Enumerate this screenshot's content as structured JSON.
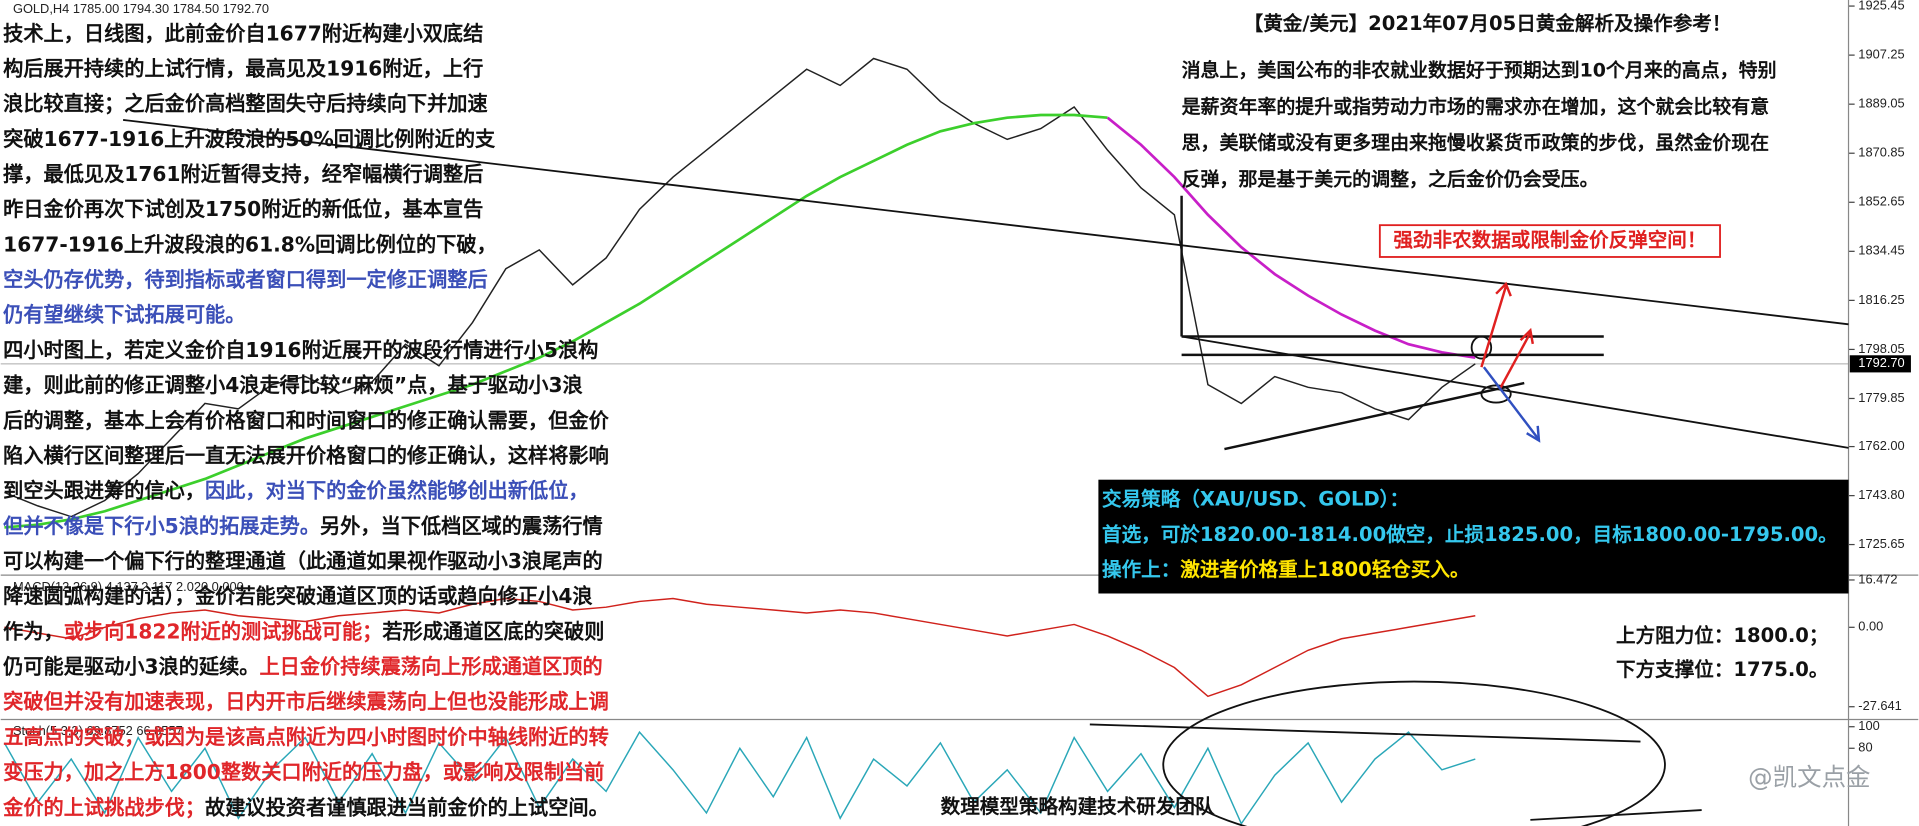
{
  "chart_data": [
    {
      "type": "line",
      "title": "GOLD,H4 1785.00 1794.30 1784.50 1792.70",
      "categories": [
        null,
        null,
        null,
        null,
        null,
        null,
        null,
        null,
        null,
        null,
        null,
        null,
        null,
        null,
        null,
        null,
        null,
        null,
        null,
        null,
        null,
        null,
        null,
        null,
        null,
        null,
        null,
        null,
        null,
        null,
        null,
        null,
        null,
        null,
        null,
        null,
        null,
        null,
        null,
        null,
        null,
        null,
        null,
        null,
        null
      ],
      "series": [
        {
          "color": "#222222",
          "values": [
            1745,
            1740,
            1736,
            1742,
            1752,
            1765,
            1778,
            1776,
            1785,
            1788,
            1782,
            1786,
            1800,
            1792,
            1808,
            1828,
            1835,
            1822,
            1832,
            1850,
            1862,
            1872,
            1882,
            1892,
            1902,
            1896,
            1906,
            1902,
            1890,
            1882,
            1876,
            1880,
            1888,
            1872,
            1858,
            1848,
            1785,
            1778,
            1788,
            1784,
            1782,
            1776,
            1772,
            1784,
            1792.7
          ]
        },
        {
          "color": "#3ccf2c",
          "values": [
            1732,
            1733,
            1735,
            1738,
            1742,
            1746,
            1750,
            1755,
            1760,
            1765,
            1769,
            1773,
            1777,
            1781,
            1785,
            1790,
            1795,
            1801,
            1808,
            1815,
            1823,
            1831,
            1839,
            1847,
            1855,
            1862,
            1868,
            1874,
            1879,
            1882,
            1884,
            1885,
            1885,
            1884,
            null,
            null,
            null,
            null,
            null,
            null,
            null,
            null,
            null,
            null,
            null
          ]
        },
        {
          "color": "#c81fc8",
          "values": [
            null,
            null,
            null,
            null,
            null,
            null,
            null,
            null,
            null,
            null,
            null,
            null,
            null,
            null,
            null,
            null,
            null,
            null,
            null,
            null,
            null,
            null,
            null,
            null,
            null,
            null,
            null,
            null,
            null,
            null,
            null,
            null,
            null,
            1884,
            1874,
            1862,
            1848,
            1836,
            1826,
            1818,
            1811,
            1805,
            1800,
            1797,
            1795
          ]
        }
      ],
      "ylim": [
        1714.3,
        1927.7
      ],
      "yticks": [
        1925.45,
        1907.25,
        1889.05,
        1870.85,
        1852.65,
        1834.45,
        1816.25,
        1798.05,
        1779.85,
        {
          "value": 1762,
          "label": "1762.00"
        },
        {
          "value": 1743.8,
          "label": "1743.80"
        },
        1725.65
      ],
      "current_price": {
        "value": 1792.7,
        "label": "1792.70"
      }
    },
    {
      "type": "line",
      "title": "MACD(12,26,9) 4.137 2.117 2.020 0.000",
      "categories": [
        null,
        null,
        null,
        null,
        null,
        null,
        null,
        null,
        null,
        null,
        null,
        null,
        null,
        null,
        null,
        null,
        null,
        null,
        null,
        null,
        null,
        null,
        null,
        null,
        null,
        null,
        null,
        null,
        null,
        null,
        null,
        null,
        null,
        null,
        null,
        null,
        null,
        null,
        null,
        null,
        null,
        null,
        null,
        null,
        null
      ],
      "series": [
        {
          "color": "#d0221c",
          "values": [
            0,
            -2,
            -4,
            0,
            3,
            5,
            6,
            4,
            3,
            2,
            4,
            5,
            6,
            5,
            8,
            10,
            9,
            6,
            7,
            9,
            10,
            8,
            7,
            6,
            5,
            6,
            5,
            3,
            1,
            -1,
            -3,
            -1,
            1,
            -3,
            -8,
            -14,
            -24,
            -20,
            -14,
            -8,
            -4,
            -2,
            0,
            2,
            4
          ]
        }
      ],
      "ylim": [
        -32.1,
        17.3
      ],
      "yticks": [
        16.472,
        {
          "value": 0,
          "label": "0.00"
        },
        -27.641
      ]
    },
    {
      "type": "line",
      "title": "Stoch(5,3,3) 69.8752 66.8557",
      "categories": [
        null,
        null,
        null,
        null,
        null,
        null,
        null,
        null,
        null,
        null,
        null,
        null,
        null,
        null,
        null,
        null,
        null,
        null,
        null,
        null,
        null,
        null,
        null,
        null,
        null,
        null,
        null,
        null,
        null,
        null,
        null,
        null,
        null,
        null,
        null,
        null,
        null,
        null,
        null,
        null,
        null,
        null,
        null,
        null,
        null
      ],
      "series": [
        {
          "color": "#2aa7b8",
          "values": [
            85,
            30,
            70,
            20,
            90,
            40,
            80,
            15,
            60,
            90,
            30,
            75,
            20,
            85,
            50,
            90,
            25,
            70,
            40,
            95,
            60,
            20,
            80,
            35,
            90,
            15,
            70,
            45,
            85,
            30,
            60,
            20,
            90,
            40,
            75,
            25,
            80,
            10,
            55,
            85,
            30,
            70,
            95,
            60,
            70
          ]
        }
      ],
      "ylim": [
        7.8,
        104.4
      ],
      "yticks": [
        100,
        80
      ]
    }
  ],
  "left_text": [
    [
      {
        "text": "技术上，日线图，此前金价自1677附近构建小双底结",
        "color": "#111111"
      }
    ],
    [
      {
        "text": "构后展开持续的上试行情，最高见及1916附近，上行",
        "color": "#111111"
      }
    ],
    [
      {
        "text": "浪比较直接；之后金价高档整固失守后持续向下并加速",
        "color": "#111111"
      }
    ],
    [
      {
        "text": "突破1677-1916上升波段浪的50%回调比例附近的支",
        "color": "#111111"
      }
    ],
    [
      {
        "text": "撑，最低见及1761附近暂得支持，经窄幅横行调整后",
        "color": "#111111"
      }
    ],
    [
      {
        "text": "昨日金价再次下试创及1750附近的新低位，基本宣告",
        "color": "#111111"
      }
    ],
    [
      {
        "text": "1677-1916上升波段浪的61.8%回调比例位的下破，",
        "color": "#111111"
      }
    ],
    [
      {
        "text": "空头仍存优势，待到指标或者窗口得到一定修正调整后",
        "color": "#3b4fb8"
      }
    ],
    [
      {
        "text": "仍有望继续下试拓展可能。",
        "color": "#3b4fb8"
      }
    ],
    [
      {
        "text": "四小时图上，若定义金价自1916附近展开的波段行情进行小5浪构",
        "color": "#111111"
      }
    ],
    [
      {
        "text": "建，则此前的修正调整小4浪走得比较“麻烦”点，基于驱动小3浪",
        "color": "#111111"
      }
    ],
    [
      {
        "text": "后的调整，基本上会有价格窗口和时间窗口的修正确认需要，但金价",
        "color": "#111111"
      }
    ],
    [
      {
        "text": "陷入横行区间整理后一直无法展开价格窗口的修正确认，这样将影响",
        "color": "#111111"
      }
    ],
    [
      {
        "text": "到空头跟进筹的信心，",
        "color": "#111111"
      },
      {
        "text": "因此，对当下的金价虽然能够创出新低位，",
        "color": "#3b4fb8"
      }
    ],
    [
      {
        "text": "但并不像是下行小5浪的拓展走势。",
        "color": "#3b4fb8"
      },
      {
        "text": "另外，当下低档区域的震荡行情",
        "color": "#111111"
      }
    ],
    [
      {
        "text": "可以构建一个偏下行的整理通道（此通道如果视作驱动小3浪尾声的",
        "color": "#111111"
      }
    ],
    [
      {
        "text": "降速圆弧构建的话），金价若能突破通道区顶的话或趋向修正小4浪",
        "color": "#111111"
      }
    ],
    [
      {
        "text": "作为，",
        "color": "#111111"
      },
      {
        "text": "或步向1822附近的测试挑战可能；",
        "color": "#e0262a"
      },
      {
        "text": "若形成通道区底的突破则",
        "color": "#111111"
      }
    ],
    [
      {
        "text": "仍可能是驱动小3浪的延续。",
        "color": "#111111"
      },
      {
        "text": "上日金价持续震荡向上形成通道区顶的",
        "color": "#e0262a"
      }
    ],
    [
      {
        "text": "突破但并没有加速表现，日内开市后继续震荡向上但也没能形成上调",
        "color": "#e0262a"
      }
    ],
    [
      {
        "text": "五高点的突破，或因为是该高点附近为四小时图时价中轴线附近的转",
        "color": "#e0262a"
      }
    ],
    [
      {
        "text": "变压力，加之上方1800整数关口附近的压力盘，或影响及限制当前",
        "color": "#e0262a"
      }
    ],
    [
      {
        "text": "金价的上试挑战步伐；",
        "color": "#e0262a"
      },
      {
        "text": "故建议投资者谨慎跟进当前金价的上试空间。",
        "color": "#111111"
      }
    ]
  ],
  "right_title": "【黄金/美元】2021年07月05日黄金解析及操作参考！",
  "right_text": [
    "消息上，美国公布的非农就业数据好于预期达到10个月来的高点，特别",
    "是薪资年率的提升或指劳动力市场的需求亦在增加，这个就会比较有意",
    "思，美联储或没有更多理由来拖慢收紧货币政策的步伐，虽然金价现在",
    "反弹，那是基于美元的调整，之后金价仍会受压。"
  ],
  "callout": "强劲非农数据或限制金价反弹空间！",
  "strategy": [
    [
      {
        "text": "交易策略（XAU/USD、GOLD）：",
        "color": "#35c8ee"
      }
    ],
    [
      {
        "text": "首选，可於1820.00-1814.00做空，止损1825.00，目标1800.00-1795.00。",
        "color": "#35c8ee"
      }
    ],
    [
      {
        "text": "操作上：",
        "color": "#35c8ee"
      },
      {
        "text": "激进者价格重上1800轻仓买入。",
        "color": "#ffe500"
      }
    ]
  ],
  "levels": [
    "上方阻力位：1800.0；",
    "下方支撑位：1775.0。"
  ],
  "team": "数理模型策略构建技术研发团队",
  "watermark": "@凯文点金"
}
